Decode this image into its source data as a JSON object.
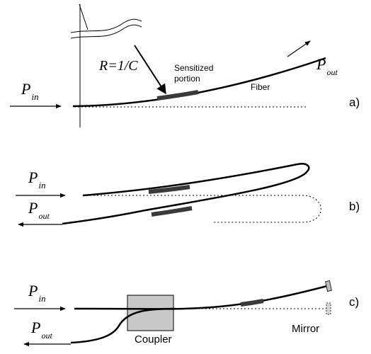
{
  "panel_a": {
    "formula": "R=1/C",
    "sensitized_line1": "Sensitized",
    "sensitized_line2": "portion",
    "fiber_label": "Fiber",
    "p_in_main": "P",
    "p_in_sub": "in",
    "p_out_main": "P",
    "p_out_sub": "out",
    "panel_label": "a)"
  },
  "panel_b": {
    "p_in_main": "P",
    "p_in_sub": "in",
    "p_out_main": "P",
    "p_out_sub": "out",
    "panel_label": "b)"
  },
  "panel_c": {
    "p_in_main": "P",
    "p_in_sub": "in",
    "p_out_main": "P",
    "p_out_sub": "out",
    "coupler_label": "Coupler",
    "mirror_label": "Mirror",
    "panel_label": "c)"
  },
  "colors": {
    "line": "#000000",
    "sensitized": "#3a3a3a",
    "coupler_fill": "#c8c8c8",
    "mirror_fill": "#bdbdbd"
  }
}
